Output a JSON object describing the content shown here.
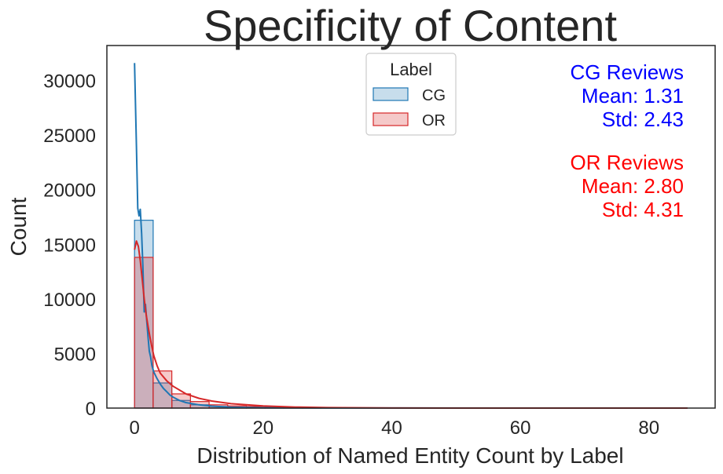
{
  "chart_data": {
    "type": "histogram",
    "title": "Specificity of Content",
    "xlabel": "Distribution of Named Entity Count by Label",
    "ylabel": "Count",
    "xlim": [
      -4.3,
      90.3
    ],
    "ylim": [
      0,
      33200
    ],
    "x_ticks": [
      0,
      20,
      40,
      60,
      80
    ],
    "x_tick_labels": [
      "0",
      "20",
      "40",
      "60",
      "80"
    ],
    "y_ticks": [
      0,
      5000,
      10000,
      15000,
      20000,
      25000,
      30000
    ],
    "y_tick_labels": [
      "0",
      "5000",
      "10000",
      "15000",
      "20000",
      "25000",
      "30000"
    ],
    "bin_edges": [
      0,
      2.9,
      5.8,
      8.7,
      11.6,
      14.5,
      17.4,
      20.3,
      23.2,
      26.1,
      29.0
    ],
    "grid": false,
    "legend": {
      "title": "Label",
      "position": "top-center",
      "entries": [
        "CG",
        "OR"
      ]
    },
    "series": [
      {
        "name": "CG",
        "color": "#1f77b4",
        "bar_counts": [
          17200,
          2300,
          700,
          300,
          150,
          80,
          40,
          20,
          10,
          5
        ],
        "kde": {
          "x": [
            0,
            0.3,
            0.5,
            0.7,
            0.9,
            1.1,
            1.3,
            1.5,
            1.7,
            1.9,
            2.1,
            2.3,
            2.5,
            2.7,
            3.0,
            3.5,
            4.0,
            4.5,
            5.0,
            5.5,
            6.0,
            7.0,
            8.0,
            10.0,
            12.0,
            15.0,
            20.0,
            30.0,
            86.0
          ],
          "y": [
            31600,
            24000,
            18300,
            17600,
            18200,
            16000,
            13000,
            8800,
            9500,
            8000,
            6500,
            5200,
            4700,
            3900,
            3300,
            2700,
            2200,
            1800,
            1500,
            1200,
            1000,
            700,
            500,
            300,
            180,
            80,
            30,
            5,
            0
          ]
        }
      },
      {
        "name": "OR",
        "color": "#d62728",
        "bar_counts": [
          13800,
          3400,
          1300,
          600,
          300,
          200,
          150,
          100,
          60,
          30
        ],
        "kde": {
          "x": [
            0,
            0.3,
            0.6,
            0.9,
            1.2,
            1.5,
            1.8,
            2.1,
            2.4,
            2.7,
            3.0,
            3.5,
            4.0,
            5.0,
            6.0,
            8.0,
            10.0,
            12.0,
            15.0,
            20.0,
            25.0,
            30.0,
            40.0,
            50.0,
            86.0
          ],
          "y": [
            14500,
            15300,
            14800,
            13500,
            11800,
            10000,
            8600,
            7500,
            6500,
            5600,
            4800,
            3900,
            3200,
            2500,
            2000,
            1300,
            900,
            650,
            400,
            200,
            90,
            40,
            10,
            3,
            0
          ]
        }
      }
    ],
    "annotations": [
      {
        "lines": [
          "CG Reviews",
          "Mean: 1.31",
          "Std: 2.43"
        ],
        "color": "#0000ff"
      },
      {
        "lines": [
          "OR Reviews",
          "Mean: 2.80",
          "Std: 4.31"
        ],
        "color": "#ff0000"
      }
    ]
  }
}
